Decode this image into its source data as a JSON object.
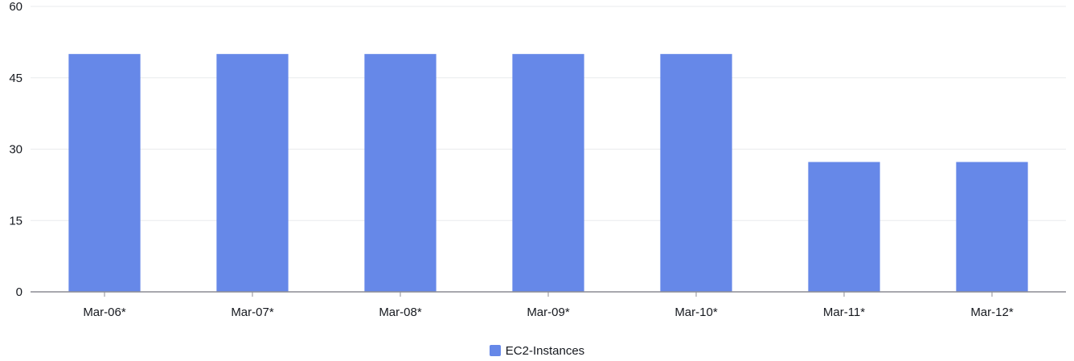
{
  "chart_data": {
    "type": "bar",
    "categories": [
      "Mar-06*",
      "Mar-07*",
      "Mar-08*",
      "Mar-09*",
      "Mar-10*",
      "Mar-11*",
      "Mar-12*"
    ],
    "series": [
      {
        "name": "EC2-Instances",
        "values": [
          50,
          50,
          50,
          50,
          50,
          27.3,
          27.3
        ],
        "color": "#6688e8"
      }
    ],
    "ylim": [
      0,
      60
    ],
    "yticks": [
      0,
      15,
      30,
      45,
      60
    ],
    "grid": true,
    "legend_position": "bottom-center",
    "colors": {
      "grid": "#e9ebed",
      "axis": "#8c8c94",
      "text": "#16191f"
    }
  }
}
